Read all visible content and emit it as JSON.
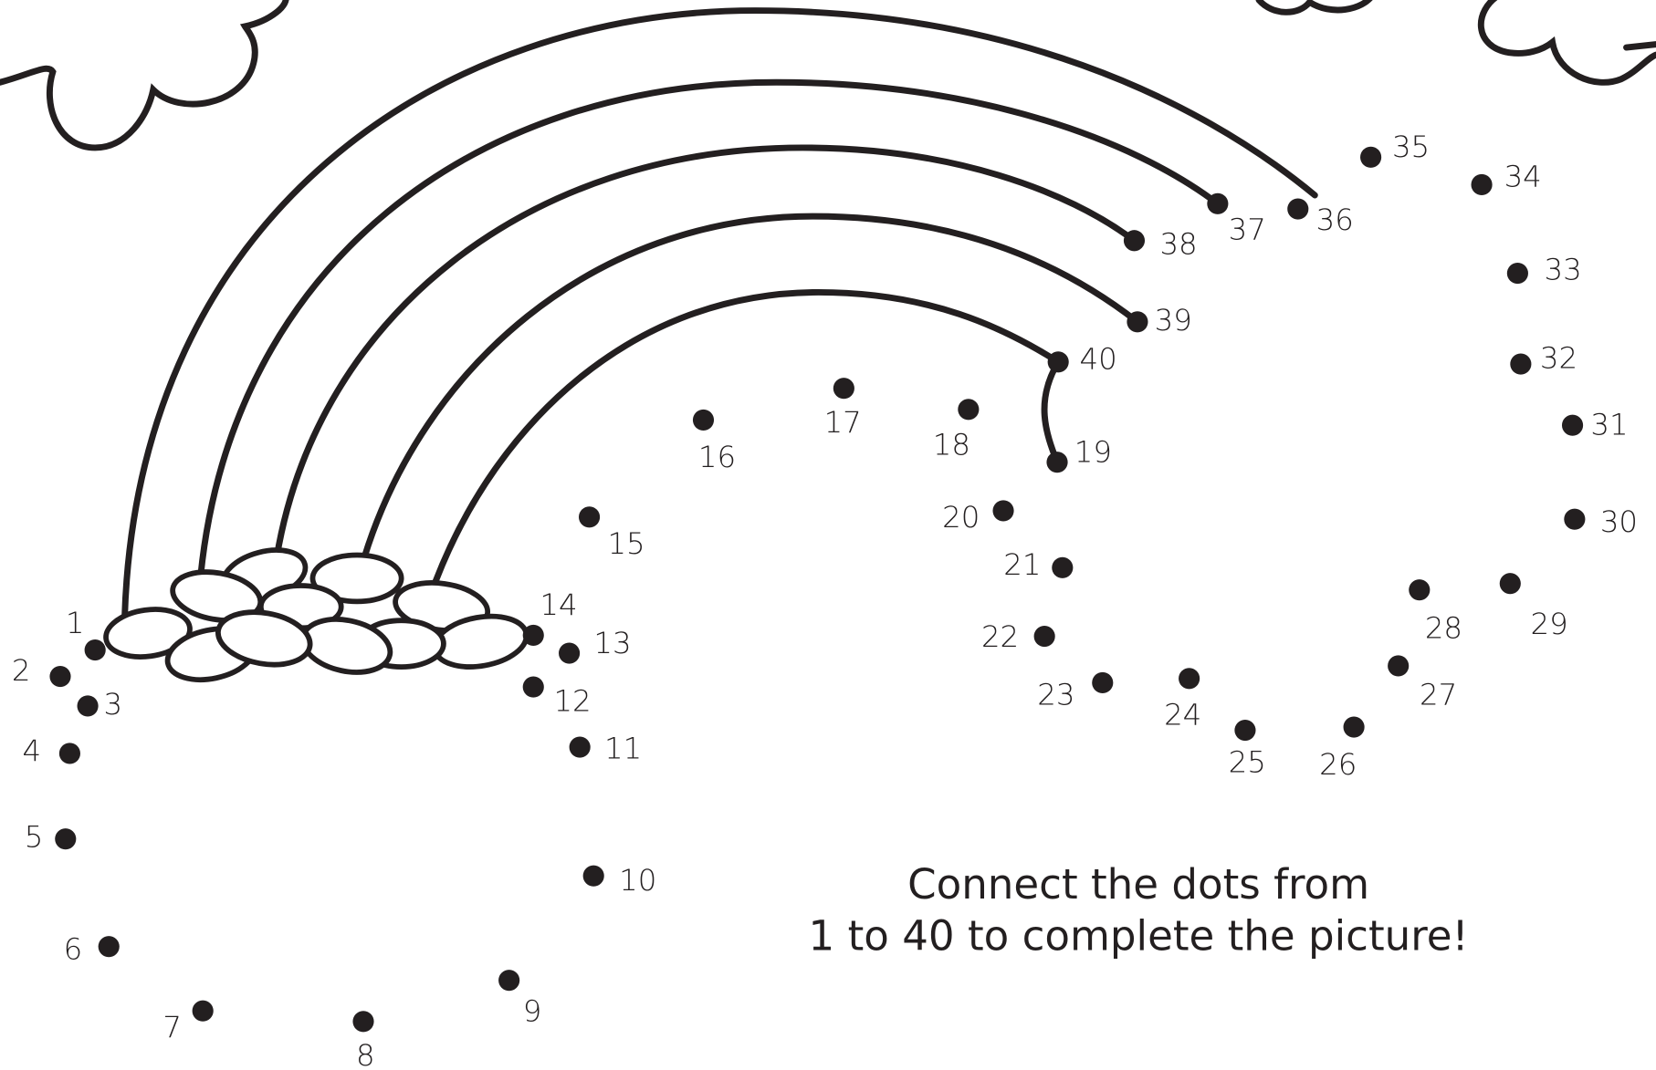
{
  "dots": [
    "1",
    "2",
    "3",
    "4",
    "5",
    "6",
    "7",
    "8",
    "9",
    "10",
    "11",
    "12",
    "13",
    "14",
    "15",
    "16",
    "17",
    "18",
    "19",
    "20",
    "21",
    "22",
    "23",
    "24",
    "25",
    "26",
    "27",
    "28",
    "29",
    "30",
    "31",
    "32",
    "33",
    "34",
    "35",
    "36",
    "37",
    "38",
    "39",
    "40"
  ],
  "instructions": [
    "Connect the dots from",
    "1 to 40 to complete the picture!"
  ]
}
